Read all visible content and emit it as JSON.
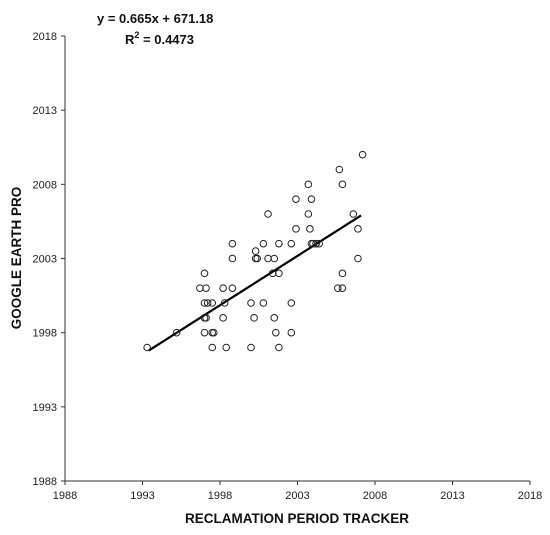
{
  "chart_data": {
    "type": "scatter",
    "xlabel": "RECLAMATION PERIOD TRACKER",
    "ylabel": "GOOGLE EARTH PRO",
    "xlim": [
      1988,
      2018
    ],
    "ylim": [
      1988,
      2018
    ],
    "xticks": [
      "1988",
      "1993",
      "1998",
      "2003",
      "2008",
      "2013",
      "2018"
    ],
    "yticks": [
      "1988",
      "1993",
      "1998",
      "2003",
      "2008",
      "2013",
      "2018"
    ],
    "equation": "y = 0.665x + 671.18",
    "r2_label": "R",
    "r2_sup": "2",
    "r2_value": " = 0.4473",
    "grid": false,
    "trendline": {
      "slope": 0.665,
      "intercept": 671.18,
      "x_start": 1993.4,
      "x_end": 2007.1
    },
    "points": [
      {
        "x": 1993.3,
        "y": 1997
      },
      {
        "x": 1995.2,
        "y": 1998
      },
      {
        "x": 1996.7,
        "y": 2001
      },
      {
        "x": 1997.0,
        "y": 2002
      },
      {
        "x": 1997.1,
        "y": 2001
      },
      {
        "x": 1997.0,
        "y": 2000
      },
      {
        "x": 1997.2,
        "y": 2000
      },
      {
        "x": 1997.0,
        "y": 1999
      },
      {
        "x": 1997.1,
        "y": 1999
      },
      {
        "x": 1997.0,
        "y": 1998
      },
      {
        "x": 1997.5,
        "y": 2000
      },
      {
        "x": 1997.5,
        "y": 1998
      },
      {
        "x": 1997.6,
        "y": 1998
      },
      {
        "x": 1997.5,
        "y": 1997
      },
      {
        "x": 1998.2,
        "y": 2001
      },
      {
        "x": 1998.3,
        "y": 2000
      },
      {
        "x": 1998.2,
        "y": 1999
      },
      {
        "x": 1998.4,
        "y": 1997
      },
      {
        "x": 1998.8,
        "y": 2001
      },
      {
        "x": 1998.8,
        "y": 2003
      },
      {
        "x": 1998.8,
        "y": 2004
      },
      {
        "x": 2000.0,
        "y": 2000
      },
      {
        "x": 2000.2,
        "y": 1999
      },
      {
        "x": 2000.0,
        "y": 1997
      },
      {
        "x": 2000.3,
        "y": 2003.5
      },
      {
        "x": 2000.3,
        "y": 2003
      },
      {
        "x": 2000.4,
        "y": 2003
      },
      {
        "x": 2000.8,
        "y": 2004
      },
      {
        "x": 2000.8,
        "y": 2000
      },
      {
        "x": 2001.1,
        "y": 2006
      },
      {
        "x": 2001.1,
        "y": 2003
      },
      {
        "x": 2001.5,
        "y": 2003
      },
      {
        "x": 2001.4,
        "y": 2002
      },
      {
        "x": 2001.5,
        "y": 1999
      },
      {
        "x": 2001.6,
        "y": 1998
      },
      {
        "x": 2001.8,
        "y": 2004
      },
      {
        "x": 2001.8,
        "y": 2002
      },
      {
        "x": 2001.8,
        "y": 1997
      },
      {
        "x": 2002.6,
        "y": 2004
      },
      {
        "x": 2002.6,
        "y": 2000
      },
      {
        "x": 2002.6,
        "y": 1998
      },
      {
        "x": 2002.9,
        "y": 2007
      },
      {
        "x": 2002.9,
        "y": 2005
      },
      {
        "x": 2003.7,
        "y": 2008
      },
      {
        "x": 2003.7,
        "y": 2006
      },
      {
        "x": 2003.8,
        "y": 2005
      },
      {
        "x": 2003.9,
        "y": 2007
      },
      {
        "x": 2003.9,
        "y": 2004
      },
      {
        "x": 2004.0,
        "y": 2004
      },
      {
        "x": 2004.2,
        "y": 2004
      },
      {
        "x": 2004.2,
        "y": 2004
      },
      {
        "x": 2004.4,
        "y": 2004
      },
      {
        "x": 2005.7,
        "y": 2009
      },
      {
        "x": 2005.9,
        "y": 2008
      },
      {
        "x": 2005.9,
        "y": 2002
      },
      {
        "x": 2005.6,
        "y": 2001
      },
      {
        "x": 2005.9,
        "y": 2001
      },
      {
        "x": 2006.6,
        "y": 2006
      },
      {
        "x": 2006.9,
        "y": 2005
      },
      {
        "x": 2006.9,
        "y": 2003
      },
      {
        "x": 2007.2,
        "y": 2010
      }
    ]
  }
}
